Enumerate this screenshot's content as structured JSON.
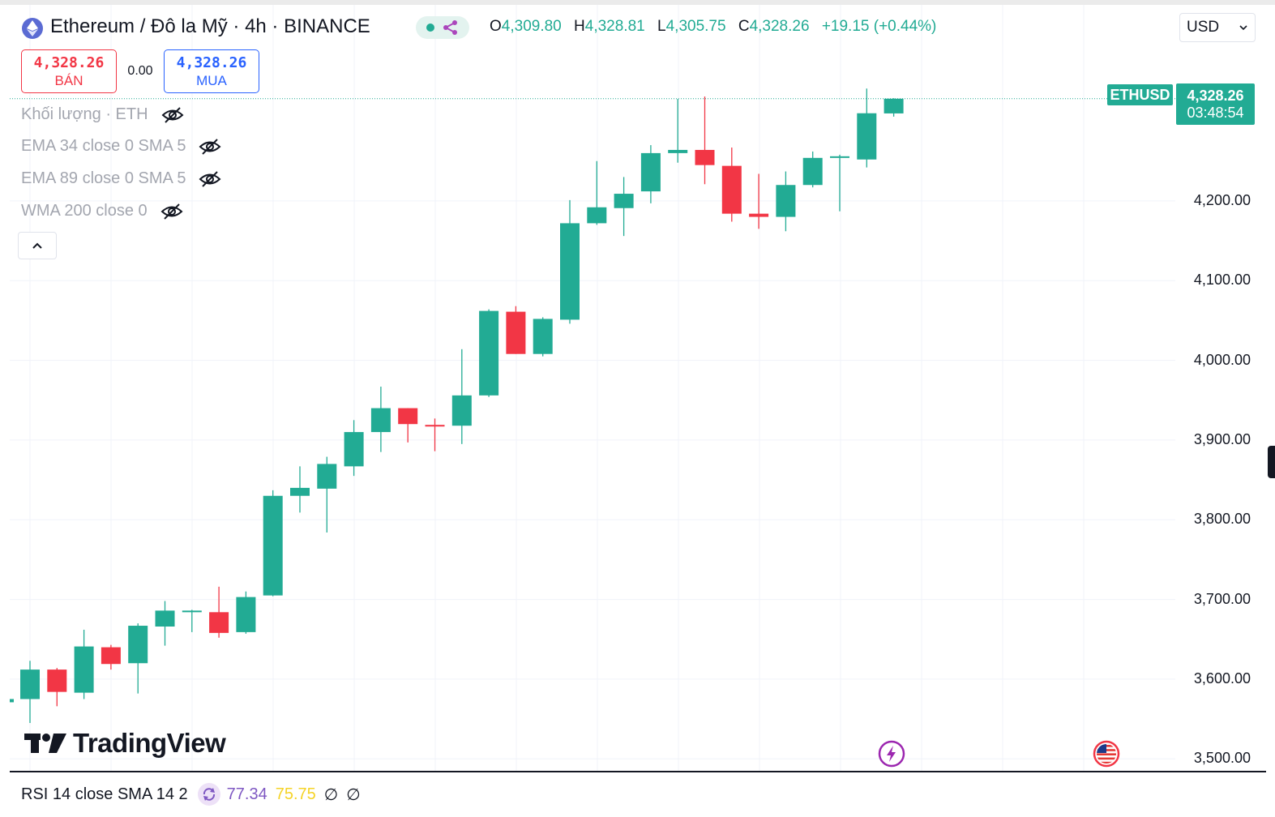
{
  "header": {
    "symbol_title": "Ethereum / Đô la Mỹ · 4h · BINANCE",
    "ohlc": {
      "o_key": "O",
      "o_val": "4,309.80",
      "h_key": "H",
      "h_val": "4,328.81",
      "l_key": "L",
      "l_val": "4,305.75",
      "c_key": "C",
      "c_val": "4,328.26",
      "change": "+19.15 (+0.44%)"
    },
    "currency": "USD"
  },
  "trade": {
    "sell_price": "4,328.26",
    "sell_label": "BÁN",
    "spread": "0.00",
    "buy_price": "4,328.26",
    "buy_label": "MUA"
  },
  "legend": {
    "volume": "Khối lượng · ETH",
    "ema34": "EMA 34 close 0 SMA 5",
    "ema89": "EMA 89 close 0 SMA 5",
    "wma200": "WMA 200 close 0"
  },
  "price_tag": {
    "symbol": "ETHUSD",
    "price": "4,328.26",
    "countdown": "03:48:54"
  },
  "brand": "TradingView",
  "rsi": {
    "label": "RSI 14 close SMA 14 2",
    "value": "77.34",
    "sma": "75.75",
    "v3": "∅",
    "v4": "∅"
  },
  "colors": {
    "up": "#22ab94",
    "down": "#f23645",
    "grid": "#f0f3fa",
    "brand_accent": "#22ab94"
  },
  "chart_data": {
    "type": "candlestick",
    "ylim": [
      3485,
      4446
    ],
    "y_ticks": [
      "4,200.00",
      "4,100.00",
      "4,000.00",
      "3,900.00",
      "3,800.00",
      "3,700.00",
      "3,600.00",
      "3,500.00"
    ],
    "y_tick_values": [
      4200,
      4100,
      4000,
      3900,
      3800,
      3700,
      3600,
      3500
    ],
    "last_price": 4328.26,
    "candles": [
      {
        "o": 3575,
        "h": 3623,
        "l": 3545,
        "c": 3612
      },
      {
        "o": 3612,
        "h": 3614,
        "l": 3566,
        "c": 3584
      },
      {
        "o": 3583,
        "h": 3662,
        "l": 3575,
        "c": 3641
      },
      {
        "o": 3640,
        "h": 3643,
        "l": 3612,
        "c": 3619
      },
      {
        "o": 3620,
        "h": 3670,
        "l": 3582,
        "c": 3667
      },
      {
        "o": 3666,
        "h": 3698,
        "l": 3642,
        "c": 3686
      },
      {
        "o": 3685,
        "h": 3687,
        "l": 3659,
        "c": 3686
      },
      {
        "o": 3684,
        "h": 3716,
        "l": 3652,
        "c": 3658
      },
      {
        "o": 3659,
        "h": 3710,
        "l": 3657,
        "c": 3703
      },
      {
        "o": 3705,
        "h": 3837,
        "l": 3704,
        "c": 3830
      },
      {
        "o": 3830,
        "h": 3867,
        "l": 3809,
        "c": 3840
      },
      {
        "o": 3839,
        "h": 3879,
        "l": 3784,
        "c": 3870
      },
      {
        "o": 3867,
        "h": 3925,
        "l": 3855,
        "c": 3910
      },
      {
        "o": 3910,
        "h": 3967,
        "l": 3885,
        "c": 3940
      },
      {
        "o": 3940,
        "h": 3940,
        "l": 3897,
        "c": 3920
      },
      {
        "o": 3919,
        "h": 3927,
        "l": 3886,
        "c": 3918
      },
      {
        "o": 3918,
        "h": 4014,
        "l": 3895,
        "c": 3956
      },
      {
        "o": 3956,
        "h": 4064,
        "l": 3954,
        "c": 4062
      },
      {
        "o": 4061,
        "h": 4068,
        "l": 4008,
        "c": 4008
      },
      {
        "o": 4008,
        "h": 4054,
        "l": 4005,
        "c": 4052
      },
      {
        "o": 4051,
        "h": 4201,
        "l": 4046,
        "c": 4172
      },
      {
        "o": 4172,
        "h": 4250,
        "l": 4170,
        "c": 4192
      },
      {
        "o": 4191,
        "h": 4230,
        "l": 4156,
        "c": 4209
      },
      {
        "o": 4212,
        "h": 4270,
        "l": 4197,
        "c": 4260
      },
      {
        "o": 4260,
        "h": 4328,
        "l": 4248,
        "c": 4264
      },
      {
        "o": 4264,
        "h": 4331,
        "l": 4221,
        "c": 4245
      },
      {
        "o": 4244,
        "h": 4267,
        "l": 4174,
        "c": 4184
      },
      {
        "o": 4184,
        "h": 4234,
        "l": 4165,
        "c": 4180
      },
      {
        "o": 4180,
        "h": 4237,
        "l": 4162,
        "c": 4220
      },
      {
        "o": 4220,
        "h": 4262,
        "l": 4217,
        "c": 4254
      },
      {
        "o": 4255,
        "h": 4258,
        "l": 4187,
        "c": 4256
      },
      {
        "o": 4252,
        "h": 4341,
        "l": 4242,
        "c": 4310
      },
      {
        "o": 4309.8,
        "h": 4328.81,
        "l": 4305.75,
        "c": 4328.26
      }
    ]
  }
}
